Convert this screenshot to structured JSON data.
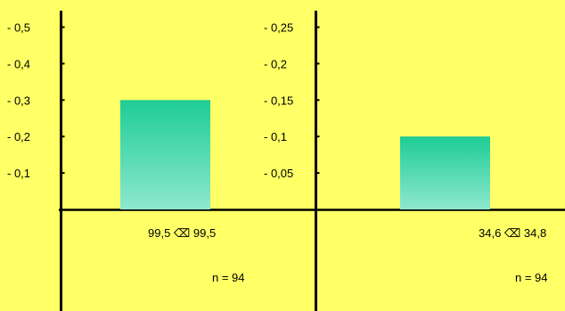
{
  "chart_data": [
    {
      "type": "bar",
      "yticks": [
        "- 0,1",
        "- 0,2",
        "- 0,3",
        "- 0,4",
        "- 0,5"
      ],
      "ytick_values": [
        0.1,
        0.2,
        0.3,
        0.4,
        0.5
      ],
      "ylim": [
        0,
        0.5
      ],
      "values": [
        0.3
      ],
      "category_label": "99,5 ⌫ 99,5",
      "n_label": "n = 94",
      "bar_color_top": "#1ECC96",
      "bar_color_bottom": "#8EE8CE"
    },
    {
      "type": "bar",
      "yticks": [
        "- 0,05",
        "- 0,1",
        "- 0,15",
        "- 0,2",
        "- 0,25"
      ],
      "ytick_values": [
        0.05,
        0.1,
        0.15,
        0.2,
        0.25
      ],
      "ylim": [
        0,
        0.25
      ],
      "values": [
        0.1
      ],
      "category_label": "34,6 ⌫ 34,8",
      "n_label": "n = 94",
      "bar_color_top": "#1ECC96",
      "bar_color_bottom": "#8EE8CE"
    }
  ]
}
